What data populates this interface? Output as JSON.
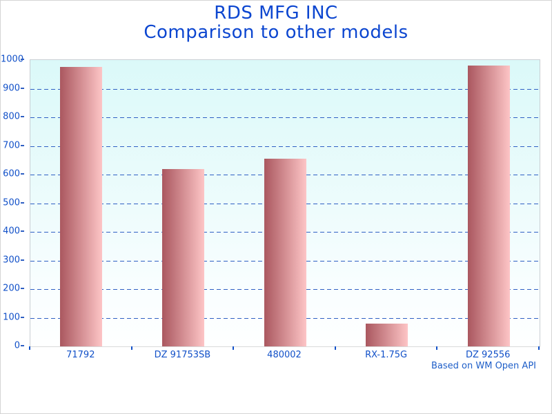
{
  "chart_data": {
    "type": "bar",
    "title": "RDS MFG INC",
    "subtitle": "Comparison to other models",
    "categories": [
      "71792",
      "DZ 91753SB",
      "480002",
      "RX-1.75G",
      "DZ 92556"
    ],
    "values": [
      975,
      620,
      655,
      80,
      980
    ],
    "xlabel": "",
    "ylabel": "",
    "ylim": [
      0,
      1000
    ],
    "ytick_interval": 100,
    "grid": "horizontal-dashed",
    "legend_position": "none",
    "footnote": "Based on WM Open API",
    "colors": {
      "title_text": "#0c46d0",
      "axis_text": "#1150c8",
      "gridline": "#2e5fc3",
      "bar_gradient_left": "#aa575f",
      "bar_gradient_right": "#fdc5c6",
      "plot_bg_top": "#dbf9f9",
      "plot_bg_bottom": "#ffffff",
      "plot_border": "#c9ced3",
      "window_border": "#d4d4d4"
    }
  }
}
